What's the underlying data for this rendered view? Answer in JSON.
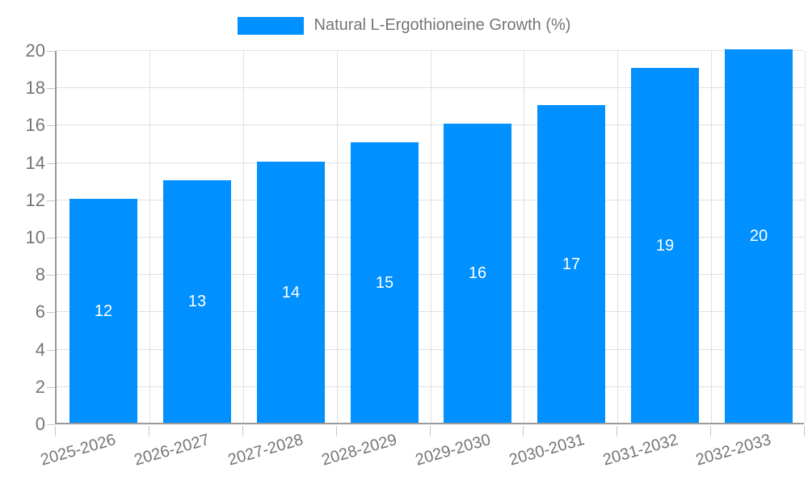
{
  "chart_data": {
    "type": "bar",
    "title": "",
    "xlabel": "",
    "ylabel": "",
    "legend_position": "top",
    "grid": true,
    "categories": [
      "2025-2026",
      "2026-2027",
      "2027-2028",
      "2028-2029",
      "2029-2030",
      "2030-2031",
      "2031-2032",
      "2032-2033"
    ],
    "series": [
      {
        "name": "Natural L-Ergothioneine Growth (%)",
        "values": [
          12,
          13,
          14,
          15,
          16,
          17,
          19,
          20
        ]
      }
    ],
    "bar_value_labels": [
      "12",
      "13",
      "14",
      "15",
      "16",
      "17",
      "19",
      "20"
    ],
    "ylim": [
      0,
      20
    ],
    "ytick_step": 2,
    "yticks": [
      0,
      2,
      4,
      6,
      8,
      10,
      12,
      14,
      16,
      18,
      20
    ],
    "colors": {
      "bar": "#0090FF",
      "bar_label": "#ffffff",
      "grid": "#e0e0e0",
      "axis_line": "#9a9a9a",
      "tick_mark": "#c6c6c6",
      "axis_text": "#757575"
    }
  }
}
